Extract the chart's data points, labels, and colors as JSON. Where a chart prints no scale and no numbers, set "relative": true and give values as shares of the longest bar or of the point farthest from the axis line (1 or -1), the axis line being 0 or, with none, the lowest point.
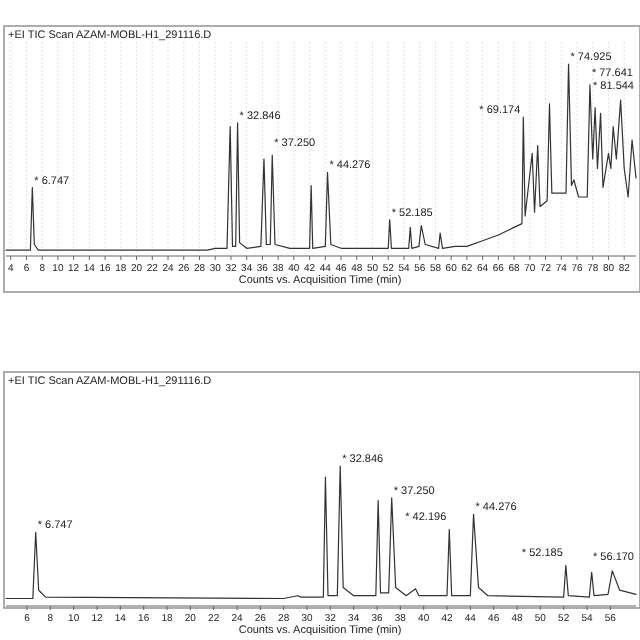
{
  "chart_data": [
    {
      "type": "line",
      "title": "+EI TIC Scan AZAM-MOBL-H1_291116.D",
      "xlabel": "Counts vs. Acquisition Time (min)",
      "relative": true,
      "grid": "x",
      "xlim": [
        3.4,
        83.5
      ],
      "xticks": [
        4,
        6,
        8,
        10,
        12,
        14,
        16,
        18,
        20,
        22,
        24,
        26,
        28,
        30,
        32,
        34,
        36,
        38,
        40,
        42,
        44,
        46,
        48,
        50,
        52,
        54,
        56,
        58,
        60,
        62,
        64,
        66,
        68,
        70,
        72,
        74,
        76,
        78,
        80,
        82
      ],
      "series": [
        {
          "color": "#333333",
          "x": [
            3.4,
            6.5,
            6.747,
            7.0,
            7.5,
            29,
            30,
            31.5,
            31.9,
            32.2,
            32.6,
            32.846,
            33.1,
            34,
            35.8,
            36.2,
            36.5,
            37.0,
            37.25,
            37.6,
            39.5,
            42.0,
            42.2,
            42.4,
            44.0,
            44.276,
            44.7,
            46,
            52.0,
            52.185,
            52.4,
            54.6,
            54.8,
            55.0,
            55.9,
            56.2,
            56.7,
            58.4,
            58.6,
            58.9,
            60.5,
            62,
            64,
            66,
            68,
            69.0,
            69.174,
            69.4,
            70.3,
            70.6,
            71.0,
            71.3,
            72.2,
            72.5,
            72.8,
            74.6,
            74.925,
            75.3,
            75.6,
            76.2,
            77.3,
            77.641,
            78.0,
            78.3,
            78.6,
            79.0,
            79.3,
            80.0,
            80.3,
            80.6,
            81.0,
            81.544,
            82.0,
            82.5,
            83.0,
            83.5
          ],
          "values": [
            0.02,
            0.02,
            0.35,
            0.05,
            0.02,
            0.02,
            0.03,
            0.03,
            0.67,
            0.04,
            0.04,
            0.69,
            0.06,
            0.03,
            0.04,
            0.5,
            0.05,
            0.05,
            0.52,
            0.05,
            0.03,
            0.03,
            0.36,
            0.03,
            0.04,
            0.43,
            0.05,
            0.03,
            0.03,
            0.18,
            0.03,
            0.03,
            0.14,
            0.03,
            0.04,
            0.15,
            0.05,
            0.03,
            0.11,
            0.03,
            0.04,
            0.04,
            0.07,
            0.1,
            0.14,
            0.16,
            0.72,
            0.2,
            0.53,
            0.22,
            0.57,
            0.25,
            0.28,
            0.79,
            0.32,
            0.32,
            1,
            0.36,
            0.39,
            0.3,
            0.3,
            0.89,
            0.5,
            0.77,
            0.45,
            0.74,
            0.35,
            0.53,
            0.45,
            0.67,
            0.5,
            0.81,
            0.45,
            0.3,
            0.6,
            0.4
          ]
        }
      ],
      "annotations": [
        {
          "text": "* 6.747",
          "x": 6.747,
          "y": 0.35
        },
        {
          "text": "* 32.846",
          "x": 32.846,
          "y": 0.69
        },
        {
          "text": "* 37.250",
          "x": 37.25,
          "y": 0.52
        },
        {
          "text": "* 44.276",
          "x": 44.276,
          "y": 0.43
        },
        {
          "text": "* 52.185",
          "x": 52.185,
          "y": 0.18
        },
        {
          "text": "* 69.174",
          "x": 69.174,
          "y": 0.72
        },
        {
          "text": "* 74.925",
          "x": 74.925,
          "y": 1
        },
        {
          "text": "* 77.641",
          "x": 77.641,
          "y": 0.89
        },
        {
          "text": "* 81.544",
          "x": 81.544,
          "y": 0.81
        }
      ]
    },
    {
      "type": "line",
      "title": "+EI TIC Scan AZAM-MOBL-H1_291116.D",
      "xlabel": "Counts vs. Acquisition Time (min)",
      "relative": true,
      "xlim": [
        4.2,
        58.2
      ],
      "xticks": [
        6,
        8,
        10,
        12,
        14,
        16,
        18,
        20,
        22,
        24,
        26,
        28,
        30,
        32,
        34,
        36,
        38,
        40,
        42,
        44,
        46,
        48,
        50,
        52,
        54,
        56
      ],
      "series": [
        {
          "color": "#333333",
          "x": [
            4.2,
            6.5,
            6.747,
            7.0,
            7.6,
            28,
            29.2,
            29.5,
            31.4,
            31.58,
            31.8,
            32.6,
            32.846,
            33.1,
            34,
            35.9,
            36.1,
            36.3,
            37.0,
            37.26,
            37.6,
            38.5,
            39.3,
            39.6,
            42.0,
            42.196,
            42.4,
            44.0,
            44.276,
            44.7,
            45.5,
            52.0,
            52.185,
            52.4,
            54.2,
            54.4,
            54.6,
            55.8,
            56.17,
            56.8,
            58.2
          ],
          "values": [
            0.04,
            0.04,
            0.52,
            0.1,
            0.05,
            0.04,
            0.06,
            0.05,
            0.05,
            0.92,
            0.06,
            0.06,
            1,
            0.12,
            0.06,
            0.06,
            0.75,
            0.08,
            0.08,
            0.77,
            0.12,
            0.06,
            0.11,
            0.06,
            0.06,
            0.54,
            0.06,
            0.06,
            0.65,
            0.12,
            0.06,
            0.05,
            0.28,
            0.06,
            0.05,
            0.23,
            0.06,
            0.07,
            0.24,
            0.1,
            0.07
          ]
        }
      ],
      "annotations": [
        {
          "text": "* 6.747",
          "x": 6.747,
          "y": 0.52
        },
        {
          "text": "* 32.846",
          "x": 32.846,
          "y": 1
        },
        {
          "text": "* 37.250",
          "x": 37.26,
          "y": 0.77
        },
        {
          "text": "* 42.196",
          "x": 42.196,
          "y": 0.54
        },
        {
          "text": "* 44.276",
          "x": 44.276,
          "y": 0.65
        },
        {
          "text": "* 52.185",
          "x": 52.185,
          "y": 0.28
        },
        {
          "text": "* 56.170",
          "x": 56.17,
          "y": 0.24
        }
      ]
    }
  ]
}
